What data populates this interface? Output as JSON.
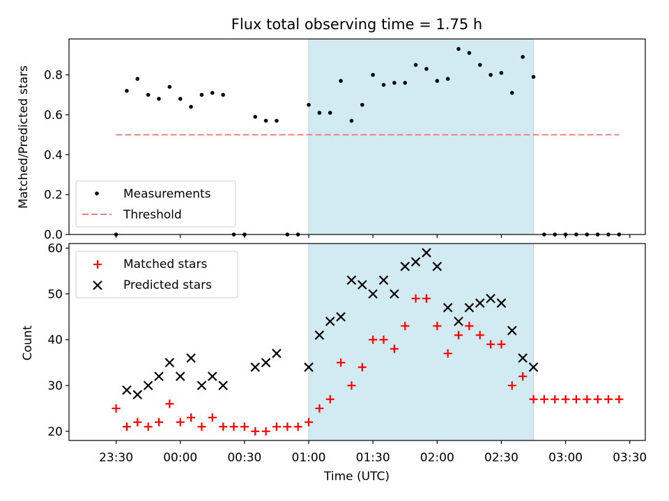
{
  "chart_data": {
    "title": "Flux total observing time = 1.75 h",
    "xlabel": "Time (UTC)",
    "x_ticks": [
      "23:30",
      "00:00",
      "00:30",
      "01:00",
      "01:30",
      "02:00",
      "02:30",
      "03:00",
      "03:30"
    ],
    "shaded_interval": {
      "start": "01:00",
      "end": "02:45",
      "color": "#add8e6"
    },
    "x": [
      "23:30",
      "23:35",
      "23:40",
      "23:45",
      "23:50",
      "23:55",
      "00:00",
      "00:05",
      "00:10",
      "00:15",
      "00:20",
      "00:25",
      "00:30",
      "00:35",
      "00:40",
      "00:45",
      "00:50",
      "00:55",
      "01:00",
      "01:05",
      "01:10",
      "01:15",
      "01:20",
      "01:25",
      "01:30",
      "01:35",
      "01:40",
      "01:45",
      "01:50",
      "01:55",
      "02:00",
      "02:05",
      "02:10",
      "02:15",
      "02:20",
      "02:25",
      "02:30",
      "02:35",
      "02:40",
      "02:45",
      "02:50",
      "02:55",
      "03:00",
      "03:05",
      "03:10",
      "03:15",
      "03:20",
      "03:25"
    ],
    "panels": [
      {
        "type": "scatter",
        "ylabel": "Matched/Predicted stars",
        "ylim": [
          0,
          0.98
        ],
        "y_ticks": [
          "0.0",
          "0.2",
          "0.4",
          "0.6",
          "0.8"
        ],
        "legend_position": "lower-left",
        "series": [
          {
            "name": "Measurements",
            "marker": "dot",
            "color": "#000000",
            "values": [
              0.0,
              0.72,
              0.78,
              0.7,
              0.68,
              0.74,
              0.68,
              0.64,
              0.7,
              0.71,
              0.7,
              0.0,
              0.0,
              0.59,
              0.57,
              0.57,
              0.0,
              0.0,
              0.65,
              0.61,
              0.61,
              0.77,
              0.57,
              0.65,
              0.8,
              0.75,
              0.76,
              0.76,
              0.85,
              0.83,
              0.77,
              0.78,
              0.93,
              0.91,
              0.85,
              0.8,
              0.81,
              0.71,
              0.89,
              0.79,
              0.0,
              0.0,
              0.0,
              0.0,
              0.0,
              0.0,
              0.0,
              0.0
            ]
          },
          {
            "name": "Threshold",
            "type": "line",
            "style": "dashed",
            "color": "#f08080",
            "value": 0.5,
            "x_range": [
              "23:30",
              "03:25"
            ]
          }
        ]
      },
      {
        "type": "scatter",
        "ylabel": "Count",
        "ylim": [
          18,
          61
        ],
        "y_ticks": [
          "20",
          "30",
          "40",
          "50",
          "60"
        ],
        "legend_position": "upper-left",
        "series": [
          {
            "name": "Matched stars",
            "marker": "plus",
            "color": "#ff0000",
            "values": [
              25,
              21,
              22,
              21,
              22,
              26,
              22,
              23,
              21,
              23,
              21,
              21,
              21,
              20,
              20,
              21,
              21,
              21,
              22,
              25,
              27,
              35,
              30,
              34,
              40,
              40,
              38,
              43,
              49,
              49,
              43,
              37,
              41,
              43,
              41,
              39,
              39,
              30,
              32,
              27,
              27,
              27,
              27,
              27,
              27,
              27,
              27,
              27
            ]
          },
          {
            "name": "Predicted stars",
            "marker": "x",
            "color": "#000000",
            "values": [
              null,
              29,
              28,
              30,
              32,
              35,
              32,
              36,
              30,
              32,
              30,
              null,
              null,
              34,
              35,
              37,
              null,
              null,
              34,
              41,
              44,
              45,
              53,
              52,
              50,
              53,
              50,
              56,
              57,
              59,
              56,
              47,
              44,
              47,
              48,
              49,
              48,
              42,
              36,
              34,
              null,
              null,
              null,
              null,
              null,
              null,
              null,
              null
            ]
          }
        ]
      }
    ]
  }
}
